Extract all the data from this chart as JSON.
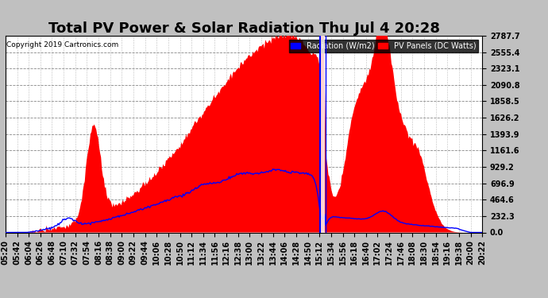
{
  "title": "Total PV Power & Solar Radiation Thu Jul 4 20:28",
  "copyright": "Copyright 2019 Cartronics.com",
  "legend_labels": [
    "Radiation (W/m2)",
    "PV Panels (DC Watts)"
  ],
  "legend_colors": [
    "blue",
    "red"
  ],
  "ylabel_right_ticks": [
    0.0,
    232.3,
    464.6,
    696.9,
    929.2,
    1161.6,
    1393.9,
    1626.2,
    1858.5,
    2090.8,
    2323.1,
    2555.4,
    2787.7
  ],
  "ymax": 2787.7,
  "ymin": 0.0,
  "bg_color": "#c0c0c0",
  "plot_bg_color": "#ffffff",
  "fill_color_pv": "red",
  "line_color_rad": "blue",
  "grid_color": "#aaaaaa",
  "title_fontsize": 13,
  "axis_fontsize": 7,
  "time_labels": [
    "05:20",
    "05:42",
    "06:04",
    "06:26",
    "06:48",
    "07:10",
    "07:32",
    "07:54",
    "08:16",
    "08:38",
    "09:00",
    "09:22",
    "09:44",
    "10:06",
    "10:28",
    "10:50",
    "11:12",
    "11:34",
    "11:56",
    "12:16",
    "12:38",
    "13:00",
    "13:22",
    "13:44",
    "14:06",
    "14:28",
    "14:50",
    "15:12",
    "15:34",
    "15:56",
    "16:18",
    "16:40",
    "17:02",
    "17:24",
    "17:46",
    "18:08",
    "18:30",
    "18:54",
    "19:16",
    "19:38",
    "20:00",
    "20:22"
  ]
}
